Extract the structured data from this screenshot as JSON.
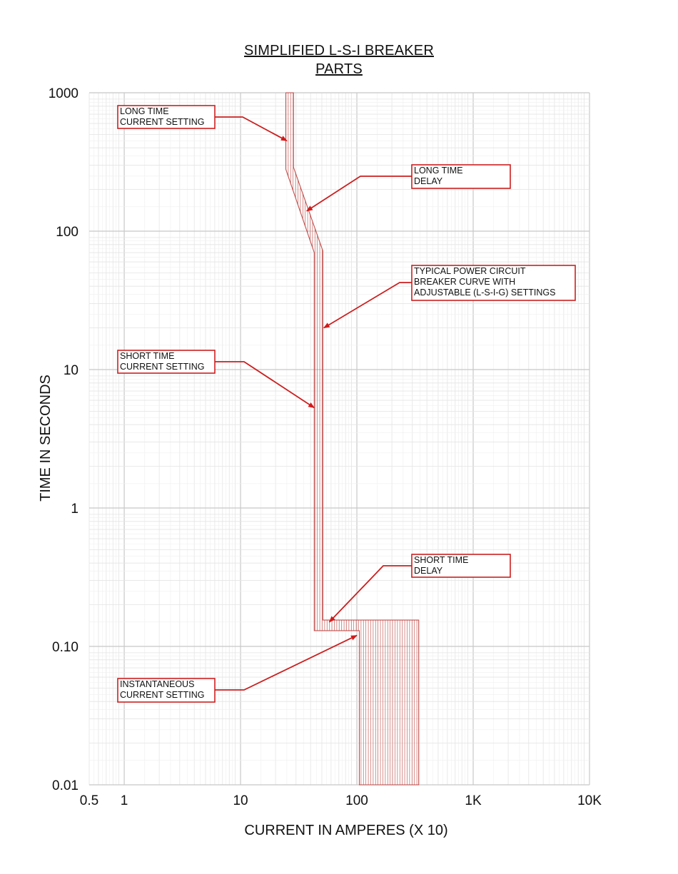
{
  "chart_data": {
    "type": "line",
    "title_lines": [
      "SIMPLIFIED L-S-I BREAKER",
      "PARTS"
    ],
    "xlabel": "CURRENT IN AMPERES (X 10)",
    "ylabel": "TIME IN SECONDS",
    "x_scale": "log",
    "y_scale": "log",
    "xlim": [
      0.5,
      10000
    ],
    "ylim": [
      0.01,
      1000
    ],
    "grid": true,
    "x_ticks": [
      {
        "value": 0.5,
        "label": "0.5"
      },
      {
        "value": 1,
        "label": "1"
      },
      {
        "value": 10,
        "label": "10"
      },
      {
        "value": 100,
        "label": "100"
      },
      {
        "value": 1000,
        "label": "1K"
      },
      {
        "value": 10000,
        "label": "10K"
      }
    ],
    "y_ticks": [
      {
        "value": 0.01,
        "label": "0.01"
      },
      {
        "value": 0.1,
        "label": "0.10"
      },
      {
        "value": 1,
        "label": "1"
      },
      {
        "value": 10,
        "label": "10"
      },
      {
        "value": 100,
        "label": "100"
      },
      {
        "value": 1000,
        "label": "1000"
      }
    ],
    "band": {
      "color": "#c0504d",
      "outline": [
        [
          24.5,
          1000
        ],
        [
          24.5,
          280
        ],
        [
          43,
          70
        ],
        [
          43,
          0.13
        ],
        [
          105,
          0.13
        ],
        [
          105,
          0.01
        ],
        [
          340,
          0.01
        ],
        [
          340,
          0.155
        ],
        [
          51,
          0.155
        ],
        [
          51,
          72
        ],
        [
          28.5,
          290
        ],
        [
          28.5,
          1000
        ]
      ]
    },
    "annotations": [
      {
        "lines": [
          "LONG TIME",
          "CURRENT SETTING"
        ],
        "target": [
          25,
          450
        ]
      },
      {
        "lines": [
          "LONG TIME",
          "DELAY"
        ],
        "target": [
          37,
          140
        ]
      },
      {
        "lines": [
          "TYPICAL POWER CIRCUIT",
          "BREAKER CURVE WITH",
          "ADJUSTABLE (L-S-I-G) SETTINGS"
        ],
        "target": [
          52,
          20
        ]
      },
      {
        "lines": [
          "SHORT TIME",
          "CURRENT SETTING"
        ],
        "target": [
          43,
          5.3
        ]
      },
      {
        "lines": [
          "SHORT TIME",
          "DELAY"
        ],
        "target": [
          58,
          0.15
        ]
      },
      {
        "lines": [
          "INSTANTANEOUS",
          "CURRENT SETTING"
        ],
        "target": [
          100,
          0.12
        ]
      }
    ],
    "annotation_color": "#cc1f1f"
  }
}
